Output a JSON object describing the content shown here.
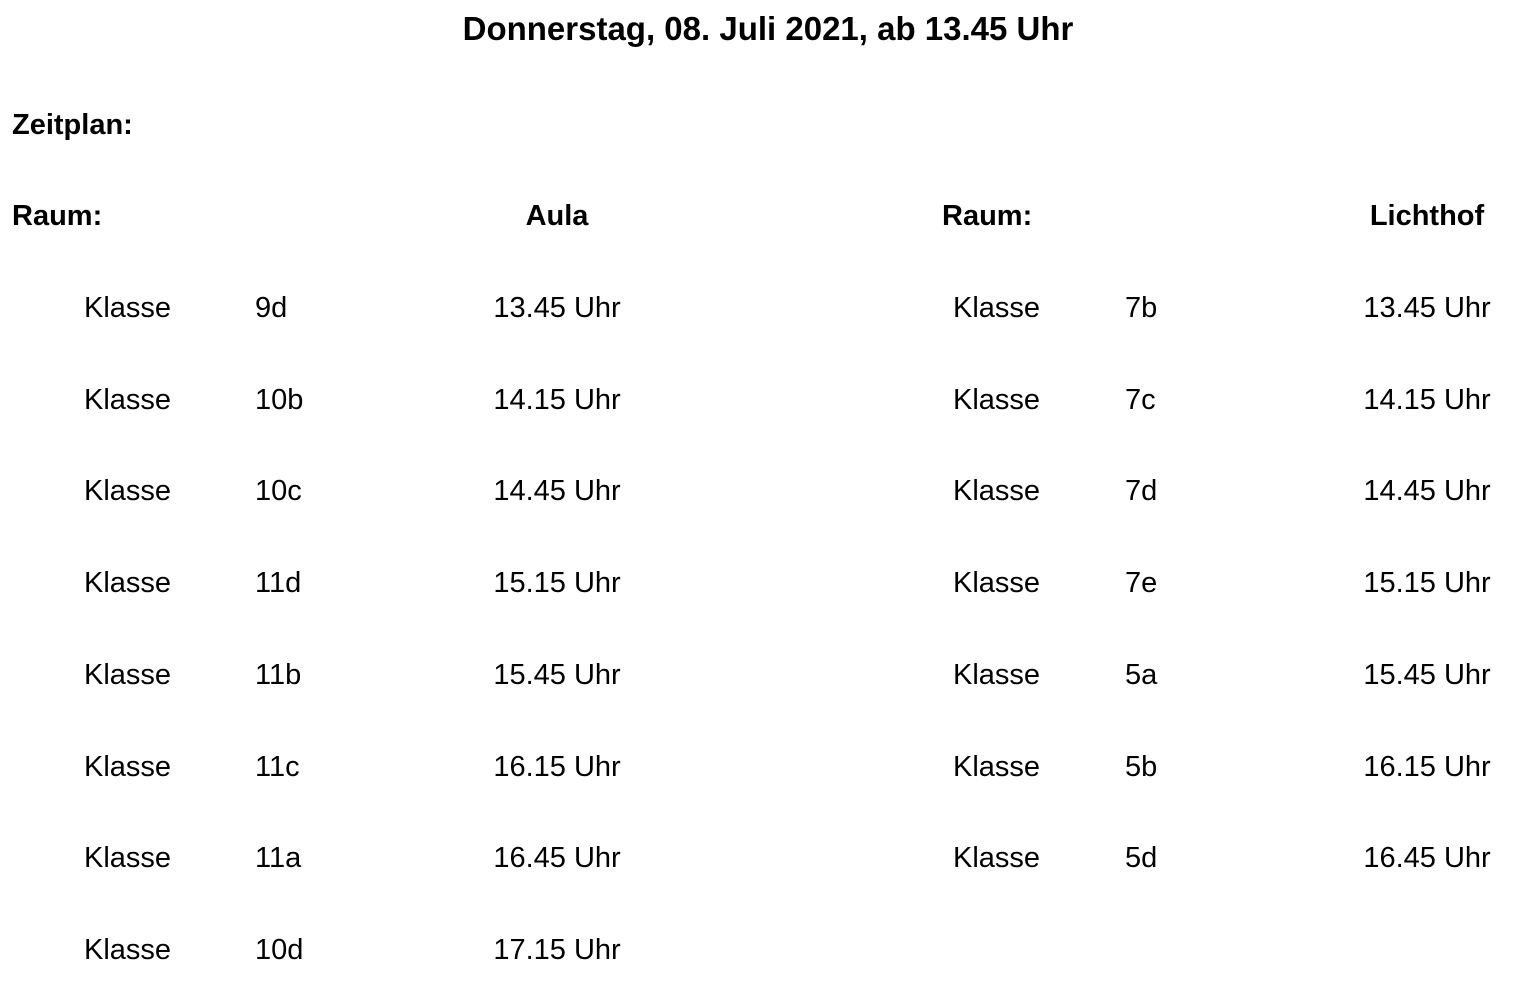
{
  "title": "Donnerstag, 08. Juli 2021, ab 13.45 Uhr",
  "section_label": "Zeitplan:",
  "rooms": [
    {
      "room_label": "Raum:",
      "room_name": "Aula",
      "entries": [
        {
          "label": "Klasse",
          "class": "9d",
          "time": "13.45 Uhr"
        },
        {
          "label": "Klasse",
          "class": "10b",
          "time": "14.15 Uhr"
        },
        {
          "label": "Klasse",
          "class": "10c",
          "time": "14.45 Uhr"
        },
        {
          "label": "Klasse",
          "class": "11d",
          "time": "15.15 Uhr"
        },
        {
          "label": "Klasse",
          "class": "11b",
          "time": "15.45 Uhr"
        },
        {
          "label": "Klasse",
          "class": "11c",
          "time": "16.15 Uhr"
        },
        {
          "label": "Klasse",
          "class": "11a",
          "time": "16.45 Uhr"
        },
        {
          "label": "Klasse",
          "class": "10d",
          "time": "17.15 Uhr"
        }
      ]
    },
    {
      "room_label": "Raum:",
      "room_name": "Lichthof",
      "entries": [
        {
          "label": "Klasse",
          "class": "7b",
          "time": "13.45 Uhr"
        },
        {
          "label": "Klasse",
          "class": "7c",
          "time": "14.15 Uhr"
        },
        {
          "label": "Klasse",
          "class": "7d",
          "time": "14.45 Uhr"
        },
        {
          "label": "Klasse",
          "class": "7e",
          "time": "15.15 Uhr"
        },
        {
          "label": "Klasse",
          "class": "5a",
          "time": "15.45 Uhr"
        },
        {
          "label": "Klasse",
          "class": "5b",
          "time": "16.15 Uhr"
        },
        {
          "label": "Klasse",
          "class": "5d",
          "time": "16.45 Uhr"
        }
      ]
    }
  ]
}
